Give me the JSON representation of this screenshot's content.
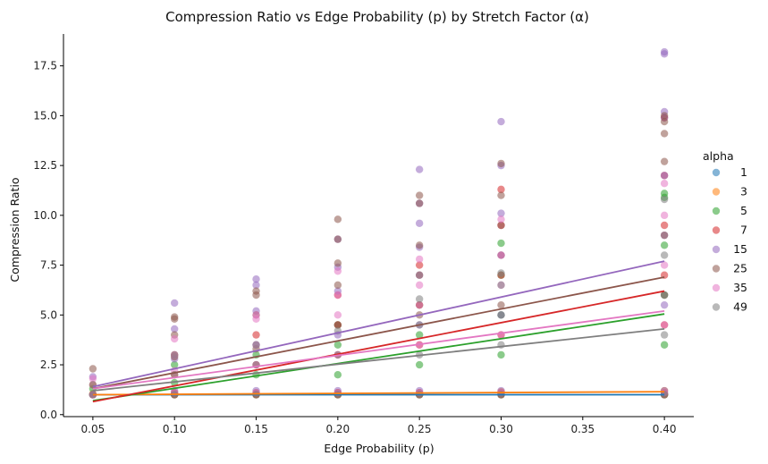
{
  "chart_data": {
    "type": "scatter",
    "title": "Compression Ratio vs Edge Probability (p) by Stretch Factor (α)",
    "xlabel": "Edge Probability (p)",
    "ylabel": "Compression Ratio",
    "xlim": [
      0.032,
      0.418
    ],
    "ylim": [
      -0.1,
      19.1
    ],
    "x_ticks": [
      0.05,
      0.1,
      0.15,
      0.2,
      0.25,
      0.3,
      0.35,
      0.4
    ],
    "x_tick_labels": [
      "0.05",
      "0.10",
      "0.15",
      "0.20",
      "0.25",
      "0.30",
      "0.35",
      "0.40"
    ],
    "y_ticks": [
      0.0,
      2.5,
      5.0,
      7.5,
      10.0,
      12.5,
      15.0,
      17.5
    ],
    "y_tick_labels": [
      "0.0",
      "2.5",
      "5.0",
      "7.5",
      "10.0",
      "12.5",
      "15.0",
      "17.5"
    ],
    "grid": false,
    "legend": {
      "title": "alpha",
      "placement": "right"
    },
    "series": [
      {
        "name": "1",
        "color": "#1f77b4",
        "points": [
          [
            0.05,
            1.0
          ],
          [
            0.1,
            1.0
          ],
          [
            0.15,
            1.0
          ],
          [
            0.2,
            1.0
          ],
          [
            0.25,
            1.0
          ],
          [
            0.3,
            1.0
          ],
          [
            0.4,
            1.0
          ]
        ],
        "fit": [
          [
            0.05,
            1.0
          ],
          [
            0.4,
            1.0
          ]
        ]
      },
      {
        "name": "3",
        "color": "#ff7f0e",
        "points": [
          [
            0.05,
            1.0
          ],
          [
            0.05,
            1.05
          ],
          [
            0.1,
            1.0
          ],
          [
            0.1,
            1.1
          ],
          [
            0.15,
            1.0
          ],
          [
            0.15,
            1.05
          ],
          [
            0.2,
            1.0
          ],
          [
            0.2,
            1.1
          ],
          [
            0.25,
            1.0
          ],
          [
            0.25,
            1.1
          ],
          [
            0.3,
            1.0
          ],
          [
            0.3,
            1.15
          ],
          [
            0.4,
            1.0
          ],
          [
            0.4,
            1.2
          ]
        ],
        "fit": [
          [
            0.05,
            1.0
          ],
          [
            0.4,
            1.15
          ]
        ]
      },
      {
        "name": "5",
        "color": "#2ca02c",
        "points": [
          [
            0.05,
            1.0
          ],
          [
            0.05,
            1.3
          ],
          [
            0.1,
            1.0
          ],
          [
            0.1,
            1.6
          ],
          [
            0.1,
            2.5
          ],
          [
            0.15,
            1.0
          ],
          [
            0.15,
            2.0
          ],
          [
            0.15,
            3.0
          ],
          [
            0.2,
            1.0
          ],
          [
            0.2,
            2.0
          ],
          [
            0.2,
            3.5
          ],
          [
            0.2,
            4.5
          ],
          [
            0.25,
            1.0
          ],
          [
            0.25,
            2.5
          ],
          [
            0.25,
            4.0
          ],
          [
            0.25,
            5.5
          ],
          [
            0.3,
            1.0
          ],
          [
            0.3,
            3.0
          ],
          [
            0.3,
            5.0
          ],
          [
            0.3,
            7.0
          ],
          [
            0.3,
            8.6
          ],
          [
            0.4,
            1.0
          ],
          [
            0.4,
            3.5
          ],
          [
            0.4,
            6.0
          ],
          [
            0.4,
            8.5
          ],
          [
            0.4,
            10.9
          ],
          [
            0.4,
            11.1
          ]
        ],
        "fit": [
          [
            0.05,
            0.7
          ],
          [
            0.4,
            5.05
          ]
        ]
      },
      {
        "name": "7",
        "color": "#d62728",
        "points": [
          [
            0.05,
            1.0
          ],
          [
            0.05,
            1.5
          ],
          [
            0.1,
            1.0
          ],
          [
            0.1,
            2.0
          ],
          [
            0.1,
            3.0
          ],
          [
            0.15,
            1.0
          ],
          [
            0.15,
            2.5
          ],
          [
            0.15,
            4.0
          ],
          [
            0.2,
            1.0
          ],
          [
            0.2,
            3.0
          ],
          [
            0.2,
            4.5
          ],
          [
            0.2,
            6.0
          ],
          [
            0.25,
            1.0
          ],
          [
            0.25,
            3.5
          ],
          [
            0.25,
            5.5
          ],
          [
            0.25,
            7.5
          ],
          [
            0.3,
            1.0
          ],
          [
            0.3,
            4.0
          ],
          [
            0.3,
            7.0
          ],
          [
            0.3,
            9.5
          ],
          [
            0.3,
            11.3
          ],
          [
            0.4,
            1.0
          ],
          [
            0.4,
            4.5
          ],
          [
            0.4,
            7.0
          ],
          [
            0.4,
            9.5
          ],
          [
            0.4,
            12.0
          ],
          [
            0.4,
            14.9
          ]
        ],
        "fit": [
          [
            0.05,
            0.65
          ],
          [
            0.4,
            6.2
          ]
        ]
      },
      {
        "name": "15",
        "color": "#9467bd",
        "points": [
          [
            0.05,
            1.0
          ],
          [
            0.05,
            1.9
          ],
          [
            0.1,
            1.2
          ],
          [
            0.1,
            2.8
          ],
          [
            0.1,
            4.3
          ],
          [
            0.1,
            5.6
          ],
          [
            0.15,
            1.2
          ],
          [
            0.15,
            3.5
          ],
          [
            0.15,
            5.2
          ],
          [
            0.15,
            6.5
          ],
          [
            0.15,
            6.8
          ],
          [
            0.2,
            1.2
          ],
          [
            0.2,
            4.0
          ],
          [
            0.2,
            6.2
          ],
          [
            0.2,
            7.4
          ],
          [
            0.2,
            8.8
          ],
          [
            0.25,
            1.2
          ],
          [
            0.25,
            4.5
          ],
          [
            0.25,
            7.0
          ],
          [
            0.25,
            8.4
          ],
          [
            0.25,
            9.6
          ],
          [
            0.25,
            10.6
          ],
          [
            0.25,
            12.3
          ],
          [
            0.3,
            1.2
          ],
          [
            0.3,
            5.0
          ],
          [
            0.3,
            8.0
          ],
          [
            0.3,
            10.1
          ],
          [
            0.3,
            12.5
          ],
          [
            0.3,
            14.7
          ],
          [
            0.4,
            1.2
          ],
          [
            0.4,
            5.5
          ],
          [
            0.4,
            9.0
          ],
          [
            0.4,
            12.0
          ],
          [
            0.4,
            14.9
          ],
          [
            0.4,
            15.2
          ],
          [
            0.4,
            18.1
          ],
          [
            0.4,
            18.2
          ]
        ],
        "fit": [
          [
            0.05,
            1.4
          ],
          [
            0.4,
            7.7
          ]
        ]
      },
      {
        "name": "25",
        "color": "#8c564b",
        "points": [
          [
            0.05,
            1.0
          ],
          [
            0.05,
            2.3
          ],
          [
            0.1,
            1.1
          ],
          [
            0.1,
            2.9
          ],
          [
            0.1,
            4.0
          ],
          [
            0.1,
            4.8
          ],
          [
            0.1,
            4.9
          ],
          [
            0.15,
            1.1
          ],
          [
            0.15,
            3.3
          ],
          [
            0.15,
            5.0
          ],
          [
            0.15,
            6.0
          ],
          [
            0.15,
            6.2
          ],
          [
            0.2,
            1.1
          ],
          [
            0.2,
            4.5
          ],
          [
            0.2,
            6.5
          ],
          [
            0.2,
            7.6
          ],
          [
            0.2,
            8.8
          ],
          [
            0.2,
            9.8
          ],
          [
            0.25,
            1.1
          ],
          [
            0.25,
            5.0
          ],
          [
            0.25,
            7.0
          ],
          [
            0.25,
            8.5
          ],
          [
            0.25,
            10.6
          ],
          [
            0.25,
            11.0
          ],
          [
            0.3,
            1.1
          ],
          [
            0.3,
            5.5
          ],
          [
            0.3,
            8.0
          ],
          [
            0.3,
            9.5
          ],
          [
            0.3,
            11.0
          ],
          [
            0.3,
            12.6
          ],
          [
            0.4,
            1.1
          ],
          [
            0.4,
            6.0
          ],
          [
            0.4,
            9.0
          ],
          [
            0.4,
            12.7
          ],
          [
            0.4,
            14.1
          ],
          [
            0.4,
            14.7
          ],
          [
            0.4,
            15.0
          ]
        ],
        "fit": [
          [
            0.05,
            1.3
          ],
          [
            0.4,
            6.9
          ]
        ]
      },
      {
        "name": "35",
        "color": "#e377c2",
        "points": [
          [
            0.05,
            1.0
          ],
          [
            0.05,
            1.8
          ],
          [
            0.1,
            1.1
          ],
          [
            0.1,
            2.2
          ],
          [
            0.1,
            3.0
          ],
          [
            0.1,
            3.8
          ],
          [
            0.15,
            1.1
          ],
          [
            0.15,
            2.5
          ],
          [
            0.15,
            3.5
          ],
          [
            0.15,
            4.8
          ],
          [
            0.15,
            5.0
          ],
          [
            0.2,
            1.1
          ],
          [
            0.2,
            3.0
          ],
          [
            0.2,
            5.0
          ],
          [
            0.2,
            6.0
          ],
          [
            0.2,
            7.2
          ],
          [
            0.25,
            1.1
          ],
          [
            0.25,
            3.5
          ],
          [
            0.25,
            5.5
          ],
          [
            0.25,
            6.5
          ],
          [
            0.25,
            7.8
          ],
          [
            0.3,
            1.1
          ],
          [
            0.3,
            4.0
          ],
          [
            0.3,
            6.5
          ],
          [
            0.3,
            8.0
          ],
          [
            0.3,
            9.8
          ],
          [
            0.4,
            1.1
          ],
          [
            0.4,
            4.5
          ],
          [
            0.4,
            7.5
          ],
          [
            0.4,
            10.0
          ],
          [
            0.4,
            11.6
          ]
        ],
        "fit": [
          [
            0.05,
            1.3
          ],
          [
            0.4,
            5.2
          ]
        ]
      },
      {
        "name": "49",
        "color": "#7f7f7f",
        "points": [
          [
            0.05,
            1.0
          ],
          [
            0.05,
            1.5
          ],
          [
            0.1,
            1.0
          ],
          [
            0.1,
            2.0
          ],
          [
            0.1,
            3.0
          ],
          [
            0.15,
            1.0
          ],
          [
            0.15,
            2.5
          ],
          [
            0.15,
            3.5
          ],
          [
            0.2,
            1.0
          ],
          [
            0.2,
            3.0
          ],
          [
            0.2,
            4.2
          ],
          [
            0.25,
            1.0
          ],
          [
            0.25,
            3.0
          ],
          [
            0.25,
            4.5
          ],
          [
            0.25,
            5.8
          ],
          [
            0.3,
            1.0
          ],
          [
            0.3,
            3.5
          ],
          [
            0.3,
            5.0
          ],
          [
            0.3,
            6.5
          ],
          [
            0.3,
            7.1
          ],
          [
            0.4,
            1.0
          ],
          [
            0.4,
            4.0
          ],
          [
            0.4,
            6.0
          ],
          [
            0.4,
            8.0
          ],
          [
            0.4,
            10.8
          ]
        ],
        "fit": [
          [
            0.05,
            1.2
          ],
          [
            0.4,
            4.3
          ]
        ]
      }
    ]
  }
}
